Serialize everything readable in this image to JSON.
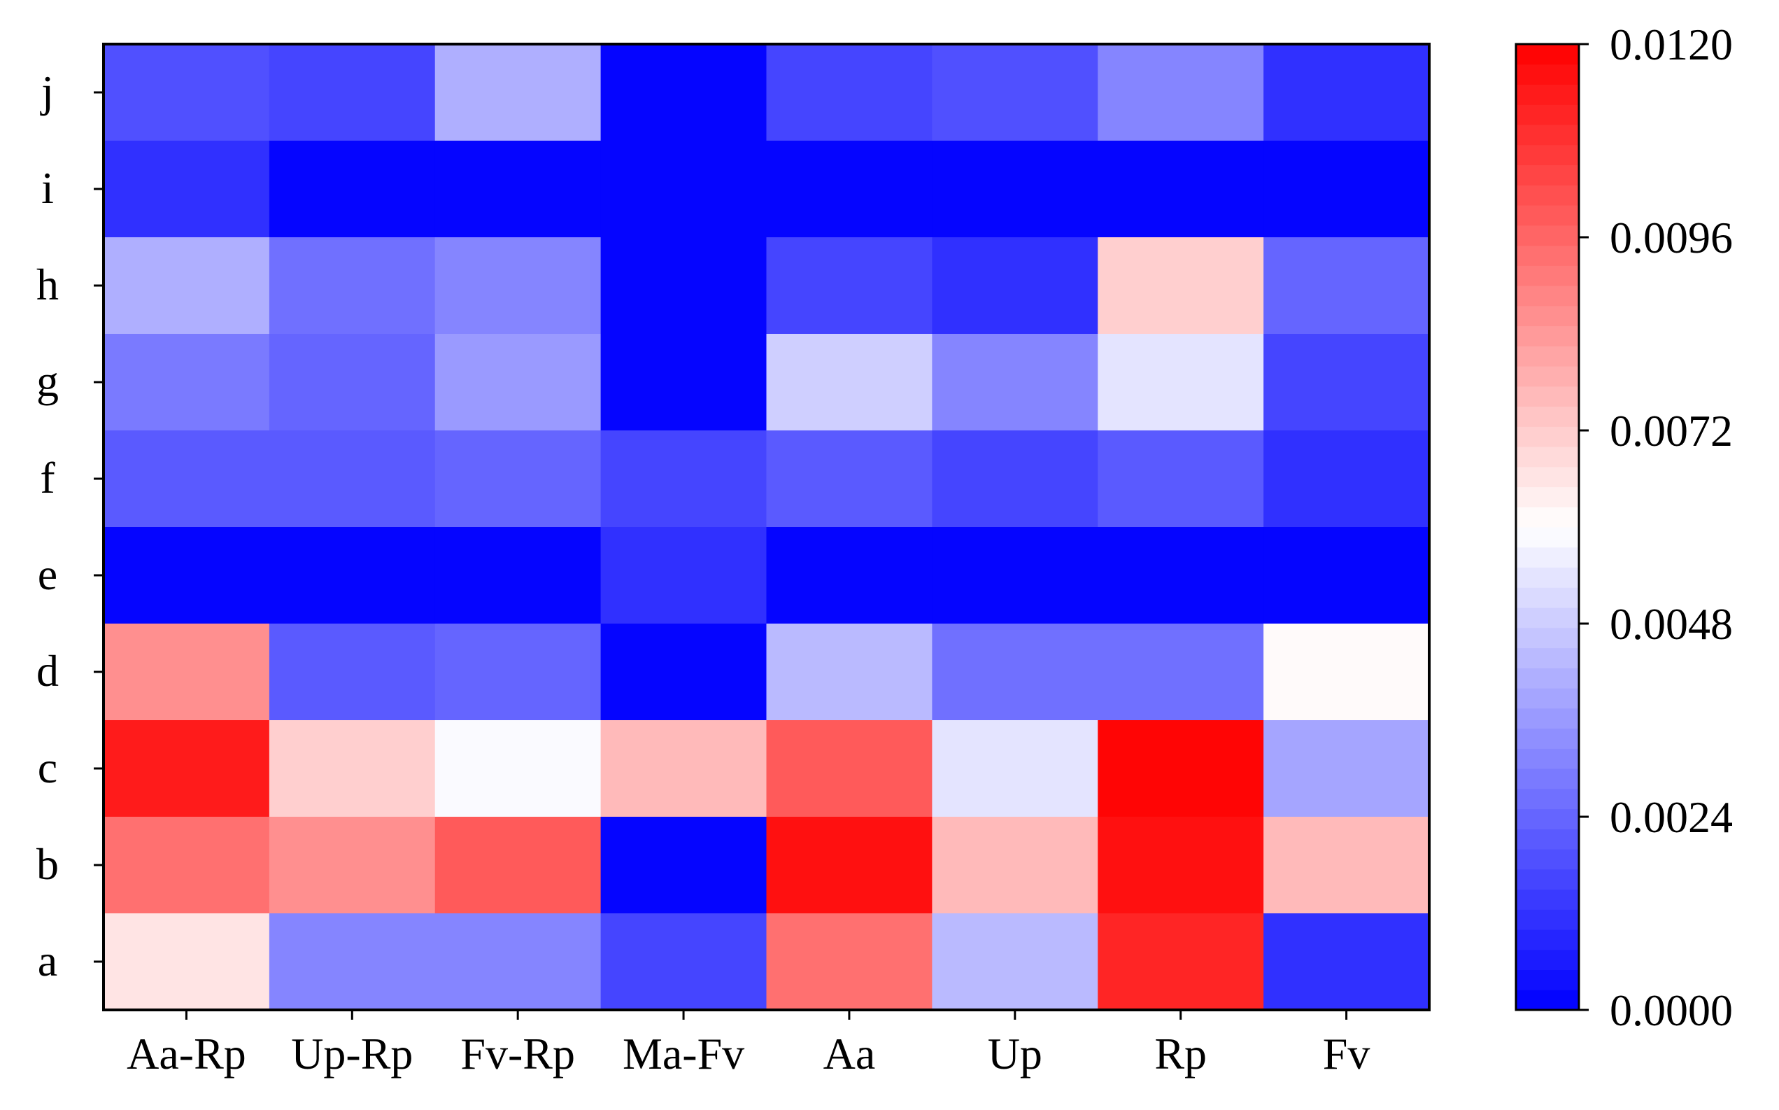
{
  "chart_data": {
    "type": "heatmap",
    "title": "",
    "xlabel": "",
    "ylabel": "",
    "x_categories": [
      "Aa-Rp",
      "Up-Rp",
      "Fv-Rp",
      "Ma-Fv",
      "Aa",
      "Up",
      "Rp",
      "Fv"
    ],
    "y_categories": [
      "j",
      "i",
      "h",
      "g",
      "f",
      "e",
      "d",
      "c",
      "b",
      "a"
    ],
    "values": [
      [
        0.0018,
        0.0015,
        0.0042,
        0.0,
        0.0016,
        0.0019,
        0.003,
        0.0012
      ],
      [
        0.0011,
        0.0,
        0.0,
        0.0,
        0.0,
        0.0,
        0.0,
        0.0
      ],
      [
        0.0041,
        0.0027,
        0.0031,
        0.0,
        0.0016,
        0.0011,
        0.007,
        0.0024
      ],
      [
        0.0028,
        0.0024,
        0.0036,
        0.0,
        0.0049,
        0.0031,
        0.0054,
        0.0015
      ],
      [
        0.002,
        0.002,
        0.0023,
        0.0016,
        0.002,
        0.0015,
        0.0021,
        0.0012
      ],
      [
        0.0,
        0.0,
        0.0,
        0.0011,
        0.0,
        0.0,
        0.0,
        0.0
      ],
      [
        0.0087,
        0.0021,
        0.0024,
        0.0,
        0.0045,
        0.0027,
        0.0026,
        0.006
      ],
      [
        0.0113,
        0.0071,
        0.0058,
        0.0076,
        0.0098,
        0.0054,
        0.012,
        0.0039
      ],
      [
        0.0093,
        0.0087,
        0.0099,
        0.0,
        0.0116,
        0.0076,
        0.0115,
        0.0077
      ],
      [
        0.0067,
        0.0032,
        0.0032,
        0.0017,
        0.0094,
        0.0044,
        0.0111,
        0.0012
      ]
    ],
    "vmin": 0.0,
    "vmax": 0.012,
    "colormap": "bwr",
    "colormap_stops": [
      "#0000ff",
      "#ffffff",
      "#ff0000"
    ],
    "colorbar": {
      "position": "right",
      "ticks": [
        "0.0000",
        "0.0024",
        "0.0048",
        "0.0072",
        "0.0096",
        "0.0120"
      ],
      "levels": 48
    },
    "grid": false
  }
}
